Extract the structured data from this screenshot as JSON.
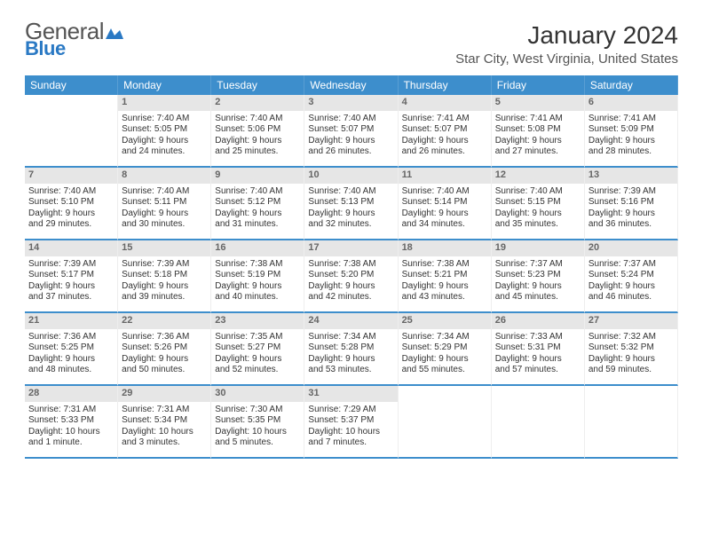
{
  "logo": {
    "general": "General",
    "blue": "Blue"
  },
  "header": {
    "month_title": "January 2024",
    "location": "Star City, West Virginia, United States"
  },
  "colors": {
    "header_bg": "#3d8ecc",
    "header_text": "#ffffff",
    "daynum_bg": "#e6e6e6",
    "daynum_text": "#666666",
    "row_divider": "#3d8ecc",
    "body_text": "#333333",
    "logo_blue": "#2a79c4",
    "logo_gray": "#555555"
  },
  "day_names": [
    "Sunday",
    "Monday",
    "Tuesday",
    "Wednesday",
    "Thursday",
    "Friday",
    "Saturday"
  ],
  "layout": {
    "first_weekday_offset": 1,
    "days_in_month": 31
  },
  "days": [
    {
      "n": 1,
      "sunrise": "7:40 AM",
      "sunset": "5:05 PM",
      "daylight": "9 hours and 24 minutes."
    },
    {
      "n": 2,
      "sunrise": "7:40 AM",
      "sunset": "5:06 PM",
      "daylight": "9 hours and 25 minutes."
    },
    {
      "n": 3,
      "sunrise": "7:40 AM",
      "sunset": "5:07 PM",
      "daylight": "9 hours and 26 minutes."
    },
    {
      "n": 4,
      "sunrise": "7:41 AM",
      "sunset": "5:07 PM",
      "daylight": "9 hours and 26 minutes."
    },
    {
      "n": 5,
      "sunrise": "7:41 AM",
      "sunset": "5:08 PM",
      "daylight": "9 hours and 27 minutes."
    },
    {
      "n": 6,
      "sunrise": "7:41 AM",
      "sunset": "5:09 PM",
      "daylight": "9 hours and 28 minutes."
    },
    {
      "n": 7,
      "sunrise": "7:40 AM",
      "sunset": "5:10 PM",
      "daylight": "9 hours and 29 minutes."
    },
    {
      "n": 8,
      "sunrise": "7:40 AM",
      "sunset": "5:11 PM",
      "daylight": "9 hours and 30 minutes."
    },
    {
      "n": 9,
      "sunrise": "7:40 AM",
      "sunset": "5:12 PM",
      "daylight": "9 hours and 31 minutes."
    },
    {
      "n": 10,
      "sunrise": "7:40 AM",
      "sunset": "5:13 PM",
      "daylight": "9 hours and 32 minutes."
    },
    {
      "n": 11,
      "sunrise": "7:40 AM",
      "sunset": "5:14 PM",
      "daylight": "9 hours and 34 minutes."
    },
    {
      "n": 12,
      "sunrise": "7:40 AM",
      "sunset": "5:15 PM",
      "daylight": "9 hours and 35 minutes."
    },
    {
      "n": 13,
      "sunrise": "7:39 AM",
      "sunset": "5:16 PM",
      "daylight": "9 hours and 36 minutes."
    },
    {
      "n": 14,
      "sunrise": "7:39 AM",
      "sunset": "5:17 PM",
      "daylight": "9 hours and 37 minutes."
    },
    {
      "n": 15,
      "sunrise": "7:39 AM",
      "sunset": "5:18 PM",
      "daylight": "9 hours and 39 minutes."
    },
    {
      "n": 16,
      "sunrise": "7:38 AM",
      "sunset": "5:19 PM",
      "daylight": "9 hours and 40 minutes."
    },
    {
      "n": 17,
      "sunrise": "7:38 AM",
      "sunset": "5:20 PM",
      "daylight": "9 hours and 42 minutes."
    },
    {
      "n": 18,
      "sunrise": "7:38 AM",
      "sunset": "5:21 PM",
      "daylight": "9 hours and 43 minutes."
    },
    {
      "n": 19,
      "sunrise": "7:37 AM",
      "sunset": "5:23 PM",
      "daylight": "9 hours and 45 minutes."
    },
    {
      "n": 20,
      "sunrise": "7:37 AM",
      "sunset": "5:24 PM",
      "daylight": "9 hours and 46 minutes."
    },
    {
      "n": 21,
      "sunrise": "7:36 AM",
      "sunset": "5:25 PM",
      "daylight": "9 hours and 48 minutes."
    },
    {
      "n": 22,
      "sunrise": "7:36 AM",
      "sunset": "5:26 PM",
      "daylight": "9 hours and 50 minutes."
    },
    {
      "n": 23,
      "sunrise": "7:35 AM",
      "sunset": "5:27 PM",
      "daylight": "9 hours and 52 minutes."
    },
    {
      "n": 24,
      "sunrise": "7:34 AM",
      "sunset": "5:28 PM",
      "daylight": "9 hours and 53 minutes."
    },
    {
      "n": 25,
      "sunrise": "7:34 AM",
      "sunset": "5:29 PM",
      "daylight": "9 hours and 55 minutes."
    },
    {
      "n": 26,
      "sunrise": "7:33 AM",
      "sunset": "5:31 PM",
      "daylight": "9 hours and 57 minutes."
    },
    {
      "n": 27,
      "sunrise": "7:32 AM",
      "sunset": "5:32 PM",
      "daylight": "9 hours and 59 minutes."
    },
    {
      "n": 28,
      "sunrise": "7:31 AM",
      "sunset": "5:33 PM",
      "daylight": "10 hours and 1 minute."
    },
    {
      "n": 29,
      "sunrise": "7:31 AM",
      "sunset": "5:34 PM",
      "daylight": "10 hours and 3 minutes."
    },
    {
      "n": 30,
      "sunrise": "7:30 AM",
      "sunset": "5:35 PM",
      "daylight": "10 hours and 5 minutes."
    },
    {
      "n": 31,
      "sunrise": "7:29 AM",
      "sunset": "5:37 PM",
      "daylight": "10 hours and 7 minutes."
    }
  ],
  "labels": {
    "sunrise": "Sunrise:",
    "sunset": "Sunset:",
    "daylight": "Daylight:"
  }
}
